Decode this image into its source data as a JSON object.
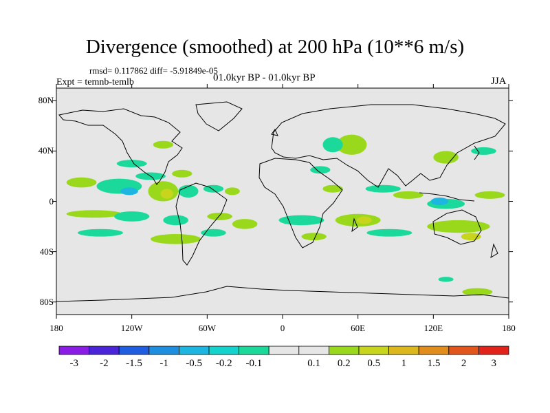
{
  "chart_data": {
    "type": "heatmap",
    "title": "Divergence (smoothed) at 200 hPa (10**6 m/s)",
    "stats_text": "rmsd= 0.117862 diff= -5.91849e-05",
    "experiment_text": "Expt = temnb-temlb",
    "period_text": "01.0kyr BP - 01.0kyr BP",
    "season": "JJA",
    "xlim": [
      -180,
      180
    ],
    "ylim": [
      -90,
      90
    ],
    "x_ticks": [
      {
        "value": -180,
        "label": "180"
      },
      {
        "value": -120,
        "label": "120W"
      },
      {
        "value": -60,
        "label": "60W"
      },
      {
        "value": 0,
        "label": "0"
      },
      {
        "value": 60,
        "label": "60E"
      },
      {
        "value": 120,
        "label": "120E"
      },
      {
        "value": 180,
        "label": "180"
      }
    ],
    "y_ticks": [
      {
        "value": 80,
        "label": "80N"
      },
      {
        "value": 40,
        "label": "40N"
      },
      {
        "value": 0,
        "label": "0"
      },
      {
        "value": -40,
        "label": "40S"
      },
      {
        "value": -80,
        "label": "80S"
      }
    ],
    "colorbar": {
      "labels": [
        "-3",
        "-2",
        "-1.5",
        "-1",
        "-0.5",
        "-0.2",
        "-0.1",
        "0.1",
        "0.2",
        "0.5",
        "1",
        "1.5",
        "2",
        "3"
      ],
      "colors": [
        "#8a1ce6",
        "#4a24d8",
        "#1f5ee0",
        "#1c8fe0",
        "#1cb6e0",
        "#14d2cc",
        "#1ad99a",
        "#e6e6e6",
        "#9ad81c",
        "#c7d51c",
        "#dcb81c",
        "#e08d1c",
        "#e2561c",
        "#e2231c"
      ]
    },
    "anomalies": [
      {
        "lon": -160,
        "lat": 15,
        "rx": 12,
        "ry": 4,
        "value": 0.15
      },
      {
        "lon": -130,
        "lat": 12,
        "rx": 18,
        "ry": 6,
        "value": -0.15
      },
      {
        "lon": -122,
        "lat": 8,
        "rx": 7,
        "ry": 3,
        "value": -0.5
      },
      {
        "lon": -95,
        "lat": 8,
        "rx": 12,
        "ry": 8,
        "value": 0.15
      },
      {
        "lon": -92,
        "lat": 6,
        "rx": 5,
        "ry": 4,
        "value": 0.5
      },
      {
        "lon": -105,
        "lat": 20,
        "rx": 12,
        "ry": 3,
        "value": -0.15
      },
      {
        "lon": -80,
        "lat": 22,
        "rx": 8,
        "ry": 3,
        "value": 0.15
      },
      {
        "lon": -75,
        "lat": 8,
        "rx": 8,
        "ry": 5,
        "value": -0.15
      },
      {
        "lon": -55,
        "lat": 10,
        "rx": 8,
        "ry": 3,
        "value": -0.15
      },
      {
        "lon": -40,
        "lat": 8,
        "rx": 6,
        "ry": 3,
        "value": 0.15
      },
      {
        "lon": -150,
        "lat": -10,
        "rx": 22,
        "ry": 3,
        "value": 0.15
      },
      {
        "lon": -120,
        "lat": -12,
        "rx": 14,
        "ry": 4,
        "value": -0.15
      },
      {
        "lon": -85,
        "lat": -15,
        "rx": 10,
        "ry": 4,
        "value": -0.15
      },
      {
        "lon": -50,
        "lat": -12,
        "rx": 10,
        "ry": 3,
        "value": 0.15
      },
      {
        "lon": -145,
        "lat": -25,
        "rx": 18,
        "ry": 3,
        "value": -0.15
      },
      {
        "lon": -85,
        "lat": -30,
        "rx": 20,
        "ry": 4,
        "value": 0.15
      },
      {
        "lon": -55,
        "lat": -25,
        "rx": 10,
        "ry": 3,
        "value": -0.15
      },
      {
        "lon": -30,
        "lat": -18,
        "rx": 10,
        "ry": 4,
        "value": 0.15
      },
      {
        "lon": 15,
        "lat": -15,
        "rx": 18,
        "ry": 4,
        "value": -0.15
      },
      {
        "lon": 60,
        "lat": -15,
        "rx": 18,
        "ry": 5,
        "value": 0.15
      },
      {
        "lon": 65,
        "lat": -15,
        "rx": 6,
        "ry": 3,
        "value": 0.5
      },
      {
        "lon": 25,
        "lat": -28,
        "rx": 10,
        "ry": 3,
        "value": 0.15
      },
      {
        "lon": 85,
        "lat": -25,
        "rx": 18,
        "ry": 3,
        "value": -0.15
      },
      {
        "lon": 140,
        "lat": -20,
        "rx": 25,
        "ry": 5,
        "value": 0.15
      },
      {
        "lon": 150,
        "lat": -28,
        "rx": 8,
        "ry": 3,
        "value": 0.5
      },
      {
        "lon": 130,
        "lat": -2,
        "rx": 15,
        "ry": 4,
        "value": -0.15
      },
      {
        "lon": 125,
        "lat": 0,
        "rx": 7,
        "ry": 3,
        "value": -0.5
      },
      {
        "lon": 100,
        "lat": 5,
        "rx": 12,
        "ry": 3,
        "value": 0.15
      },
      {
        "lon": 80,
        "lat": 10,
        "rx": 14,
        "ry": 3,
        "value": -0.15
      },
      {
        "lon": 165,
        "lat": 5,
        "rx": 12,
        "ry": 3,
        "value": 0.15
      },
      {
        "lon": 40,
        "lat": 10,
        "rx": 8,
        "ry": 3,
        "value": 0.15
      },
      {
        "lon": 55,
        "lat": 45,
        "rx": 12,
        "ry": 8,
        "value": 0.15
      },
      {
        "lon": 40,
        "lat": 45,
        "rx": 8,
        "ry": 6,
        "value": -0.15
      },
      {
        "lon": 130,
        "lat": 35,
        "rx": 10,
        "ry": 5,
        "value": 0.15
      },
      {
        "lon": 160,
        "lat": 40,
        "rx": 10,
        "ry": 3,
        "value": -0.15
      },
      {
        "lon": -95,
        "lat": 45,
        "rx": 8,
        "ry": 3,
        "value": 0.15
      },
      {
        "lon": -120,
        "lat": 30,
        "rx": 12,
        "ry": 3,
        "value": -0.15
      },
      {
        "lon": 30,
        "lat": 25,
        "rx": 8,
        "ry": 3,
        "value": -0.15
      },
      {
        "lon": 155,
        "lat": -72,
        "rx": 12,
        "ry": 3,
        "value": 0.15
      },
      {
        "lon": 130,
        "lat": -62,
        "rx": 6,
        "ry": 2,
        "value": -0.15
      }
    ]
  }
}
